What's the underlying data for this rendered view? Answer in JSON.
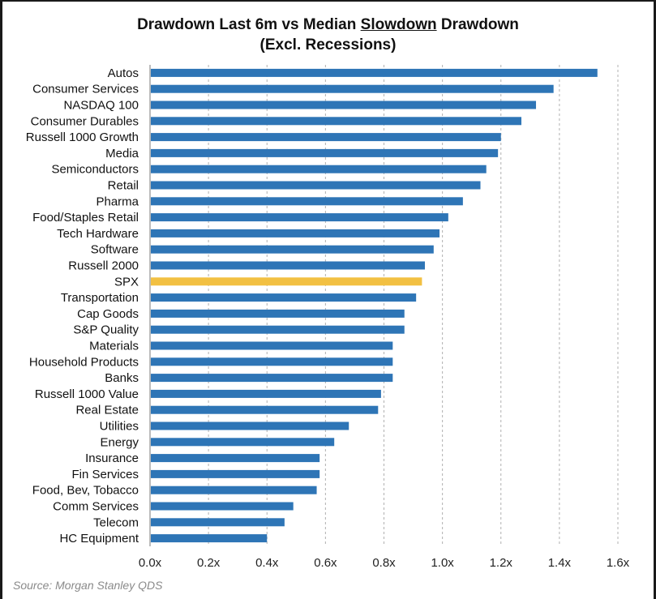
{
  "chart_data": {
    "type": "bar",
    "orientation": "horizontal",
    "title_parts": [
      {
        "text": "Drawdown Last 6m  vs Median ",
        "underline": false
      },
      {
        "text": "Slowdown",
        "underline": true
      },
      {
        "text": " Drawdown",
        "underline": false
      }
    ],
    "subtitle": "(Excl. Recessions)",
    "categories": [
      "Autos",
      "Consumer Services",
      "NASDAQ 100",
      "Consumer Durables",
      "Russell 1000 Growth",
      "Media",
      "Semiconductors",
      "Retail",
      "Pharma",
      "Food/Staples Retail",
      "Tech Hardware",
      "Software",
      "Russell 2000",
      "SPX",
      "Transportation",
      "Cap Goods",
      "S&P Quality",
      "Materials",
      "Household Products",
      "Banks",
      "Russell 1000 Value",
      "Real Estate",
      "Utilities",
      "Energy",
      "Insurance",
      "Fin Services",
      "Food, Bev, Tobacco",
      "Comm Services",
      "Telecom",
      "HC Equipment"
    ],
    "values": [
      1.53,
      1.38,
      1.32,
      1.27,
      1.2,
      1.19,
      1.15,
      1.13,
      1.07,
      1.02,
      0.99,
      0.97,
      0.94,
      0.93,
      0.91,
      0.87,
      0.87,
      0.83,
      0.83,
      0.83,
      0.79,
      0.78,
      0.68,
      0.63,
      0.58,
      0.58,
      0.57,
      0.49,
      0.46,
      0.4
    ],
    "highlight_category": "SPX",
    "colors": {
      "bar": "#2e75b6",
      "highlight": "#f2c042",
      "grid": "#b0b0b0"
    },
    "xlim": [
      0,
      1.6
    ],
    "xticks": [
      0,
      0.2,
      0.4,
      0.6,
      0.8,
      1.0,
      1.2,
      1.4,
      1.6
    ],
    "xtick_labels": [
      "0.0x",
      "0.2x",
      "0.4x",
      "0.6x",
      "0.8x",
      "1.0x",
      "1.2x",
      "1.4x",
      "1.6x"
    ],
    "grid": "vertical dashed"
  },
  "source": "Source: Morgan Stanley QDS"
}
